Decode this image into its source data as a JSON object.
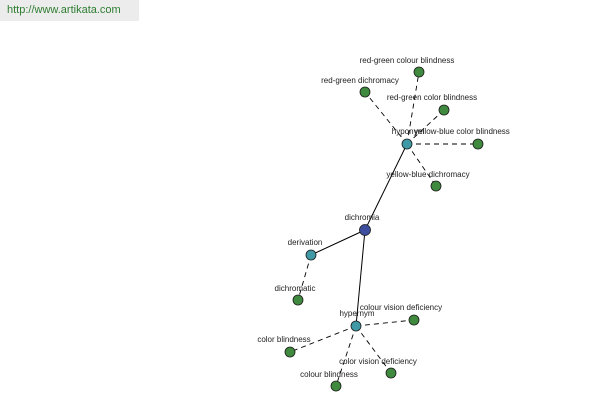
{
  "header": {
    "url": "http://www.artikata.com"
  },
  "colors": {
    "root": "#3d4e9e",
    "relation": "#3f9aa5",
    "leaf": "#3f8a3f",
    "edge": "#000000"
  },
  "graph": {
    "nodes": [
      {
        "id": "dichromia",
        "label": "dichromia",
        "kind": "root"
      },
      {
        "id": "hyponym",
        "label": "hyponym",
        "kind": "relation"
      },
      {
        "id": "derivation",
        "label": "derivation",
        "kind": "relation"
      },
      {
        "id": "hypernym",
        "label": "hypernym",
        "kind": "relation"
      },
      {
        "id": "red-green-colour-blindness",
        "label": "red-green colour blindness",
        "kind": "leaf"
      },
      {
        "id": "red-green-dichromacy",
        "label": "red-green dichromacy",
        "kind": "leaf"
      },
      {
        "id": "red-green-color-blindness",
        "label": "red-green color blindness",
        "kind": "leaf"
      },
      {
        "id": "yellow-blue-color-blindness",
        "label": "yellow-blue color blindness",
        "kind": "leaf"
      },
      {
        "id": "yellow-blue-dichromacy",
        "label": "yellow-blue dichromacy",
        "kind": "leaf"
      },
      {
        "id": "dichromatic",
        "label": "dichromatic",
        "kind": "leaf"
      },
      {
        "id": "colour-vision-deficiency",
        "label": "colour vision deficiency",
        "kind": "leaf"
      },
      {
        "id": "color-blindness",
        "label": "color blindness",
        "kind": "leaf"
      },
      {
        "id": "color-vision-deficiency",
        "label": "color vision deficiency",
        "kind": "leaf"
      },
      {
        "id": "colour-blindness",
        "label": "colour blindness",
        "kind": "leaf"
      }
    ],
    "edges": [
      {
        "from": "dichromia",
        "to": "hyponym",
        "style": "solid"
      },
      {
        "from": "dichromia",
        "to": "derivation",
        "style": "solid"
      },
      {
        "from": "dichromia",
        "to": "hypernym",
        "style": "solid"
      },
      {
        "from": "hyponym",
        "to": "red-green-colour-blindness",
        "style": "dashed"
      },
      {
        "from": "hyponym",
        "to": "red-green-dichromacy",
        "style": "dashed"
      },
      {
        "from": "hyponym",
        "to": "red-green-color-blindness",
        "style": "dashed"
      },
      {
        "from": "hyponym",
        "to": "yellow-blue-color-blindness",
        "style": "dashed"
      },
      {
        "from": "hyponym",
        "to": "yellow-blue-dichromacy",
        "style": "dashed"
      },
      {
        "from": "derivation",
        "to": "dichromatic",
        "style": "dashed"
      },
      {
        "from": "hypernym",
        "to": "colour-vision-deficiency",
        "style": "dashed"
      },
      {
        "from": "hypernym",
        "to": "color-blindness",
        "style": "dashed"
      },
      {
        "from": "hypernym",
        "to": "color-vision-deficiency",
        "style": "dashed"
      },
      {
        "from": "hypernym",
        "to": "colour-blindness",
        "style": "dashed"
      }
    ]
  }
}
